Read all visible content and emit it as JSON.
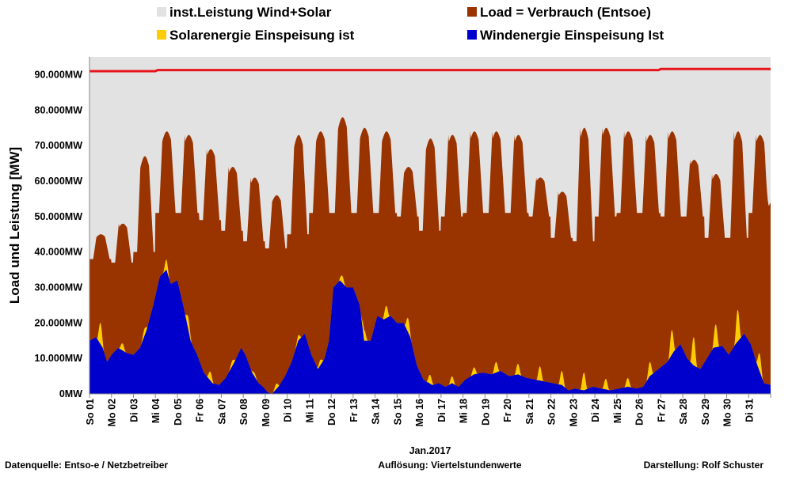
{
  "chart_data": {
    "type": "area",
    "ylabel": "Load und Leistung  [MW]",
    "xlabel": "Jan.2017",
    "ylim": [
      0,
      95000
    ],
    "y_ticks": [
      "0MW",
      "10.000MW",
      "20.000MW",
      "30.000MW",
      "40.000MW",
      "50.000MW",
      "60.000MW",
      "70.000MW",
      "80.000MW",
      "90.000MW"
    ],
    "y_tick_values": [
      0,
      10000,
      20000,
      30000,
      40000,
      50000,
      60000,
      70000,
      80000,
      90000
    ],
    "x_ticks": [
      "So 01",
      "Mo 02",
      "Di 03",
      "Mi 04",
      "Do 05",
      "Fr 06",
      "Sa 07",
      "So 08",
      "Mo 09",
      "Di 10",
      "Mi 11",
      "Do 12",
      "Fr 13",
      "Sa 14",
      "So 15",
      "Mo 16",
      "Di 17",
      "Mi 18",
      "Do 19",
      "Fr 20",
      "Sa 21",
      "So 22",
      "Mo 23",
      "Di 24",
      "Mi 25",
      "Do 26",
      "Fr 27",
      "Sa 28",
      "So 29",
      "Mo 30",
      "Di 31"
    ],
    "x_days": 31,
    "legend": [
      {
        "label": "inst.Leistung Wind+Solar",
        "color": "#e2e2e2"
      },
      {
        "label": "Load =  Verbrauch (Entsoe)",
        "color": "#993300"
      },
      {
        "label": "Solarenergie Einspeisung ist",
        "color": "#ffcc00"
      },
      {
        "label": "Windenergie Einspeisung Ist",
        "color": "#0000cc"
      }
    ],
    "series": [
      {
        "name": "inst.Leistung Wind+Solar",
        "kind": "capacity_line",
        "color": "#e8141c",
        "values": [
          [
            0,
            91000
          ],
          [
            3,
            91000
          ],
          [
            3.1,
            91300
          ],
          [
            25.9,
            91300
          ],
          [
            26,
            91600
          ],
          [
            31,
            91600
          ]
        ]
      },
      {
        "name": "Load =  Verbrauch (Entsoe)",
        "kind": "daily_profile",
        "color": "#993300",
        "daily_peak": [
          45000,
          48000,
          67000,
          74000,
          73000,
          69000,
          64000,
          61000,
          56000,
          73000,
          74000,
          78000,
          75000,
          74000,
          64000,
          72000,
          73000,
          74000,
          74000,
          73000,
          61000,
          57000,
          75000,
          75000,
          74000,
          73000,
          74000,
          66000,
          62000,
          74000,
          73000
        ],
        "daily_min": [
          38000,
          37000,
          40000,
          51000,
          51000,
          49000,
          46000,
          43000,
          41000,
          45000,
          51000,
          51000,
          51000,
          51000,
          50000,
          46000,
          50000,
          51000,
          51000,
          51000,
          50000,
          44000,
          43000,
          50000,
          51000,
          51000,
          50000,
          50000,
          44000,
          44000,
          51000
        ],
        "end_value": 54000
      },
      {
        "name": "Windenergie Einspeisung Ist",
        "kind": "profile",
        "color": "#0000cc",
        "values": [
          [
            0,
            15000
          ],
          [
            0.3,
            16000
          ],
          [
            0.6,
            13000
          ],
          [
            0.8,
            9000
          ],
          [
            1.0,
            11000
          ],
          [
            1.3,
            13000
          ],
          [
            1.7,
            11500
          ],
          [
            2.0,
            11000
          ],
          [
            2.3,
            13000
          ],
          [
            2.6,
            18000
          ],
          [
            2.9,
            25000
          ],
          [
            3.2,
            33000
          ],
          [
            3.5,
            35000
          ],
          [
            3.7,
            31000
          ],
          [
            4.0,
            32000
          ],
          [
            4.3,
            24000
          ],
          [
            4.6,
            15000
          ],
          [
            4.9,
            11000
          ],
          [
            5.2,
            6000
          ],
          [
            5.6,
            3000
          ],
          [
            5.9,
            2500
          ],
          [
            6.2,
            4500
          ],
          [
            6.6,
            9000
          ],
          [
            6.9,
            13000
          ],
          [
            7.1,
            11000
          ],
          [
            7.4,
            6000
          ],
          [
            7.7,
            3000
          ],
          [
            7.9,
            2000
          ],
          [
            8.1,
            500
          ],
          [
            8.3,
            0
          ],
          [
            8.6,
            2000
          ],
          [
            8.9,
            5000
          ],
          [
            9.2,
            9000
          ],
          [
            9.5,
            15000
          ],
          [
            9.8,
            17000
          ],
          [
            10.1,
            11000
          ],
          [
            10.4,
            7000
          ],
          [
            10.7,
            10000
          ],
          [
            10.9,
            15000
          ],
          [
            11.1,
            30000
          ],
          [
            11.4,
            32000
          ],
          [
            11.7,
            30000
          ],
          [
            12.0,
            30000
          ],
          [
            12.3,
            25000
          ],
          [
            12.5,
            15000
          ],
          [
            12.8,
            15000
          ],
          [
            13.1,
            22000
          ],
          [
            13.4,
            21000
          ],
          [
            13.7,
            22000
          ],
          [
            14.0,
            20000
          ],
          [
            14.3,
            20000
          ],
          [
            14.6,
            16000
          ],
          [
            14.9,
            8000
          ],
          [
            15.2,
            4000
          ],
          [
            15.6,
            2500
          ],
          [
            15.9,
            3000
          ],
          [
            16.2,
            2000
          ],
          [
            16.5,
            3000
          ],
          [
            16.8,
            2000
          ],
          [
            17.1,
            4000
          ],
          [
            17.5,
            5500
          ],
          [
            17.9,
            6000
          ],
          [
            18.3,
            5500
          ],
          [
            18.7,
            6500
          ],
          [
            19.1,
            5000
          ],
          [
            19.5,
            5500
          ],
          [
            19.9,
            4500
          ],
          [
            20.3,
            4000
          ],
          [
            20.7,
            3500
          ],
          [
            21.1,
            3000
          ],
          [
            21.5,
            2500
          ],
          [
            21.8,
            1000
          ],
          [
            22.1,
            1500
          ],
          [
            22.5,
            1000
          ],
          [
            22.9,
            2000
          ],
          [
            23.3,
            1500
          ],
          [
            23.7,
            1000
          ],
          [
            24.1,
            1500
          ],
          [
            24.5,
            2000
          ],
          [
            24.9,
            1500
          ],
          [
            25.2,
            2000
          ],
          [
            25.5,
            5000
          ],
          [
            25.9,
            7000
          ],
          [
            26.3,
            9000
          ],
          [
            26.6,
            12000
          ],
          [
            26.9,
            14000
          ],
          [
            27.2,
            10000
          ],
          [
            27.5,
            8000
          ],
          [
            27.8,
            7000
          ],
          [
            28.1,
            10000
          ],
          [
            28.4,
            13000
          ],
          [
            28.8,
            13500
          ],
          [
            29.1,
            11000
          ],
          [
            29.4,
            14000
          ],
          [
            29.8,
            17000
          ],
          [
            30.1,
            14000
          ],
          [
            30.4,
            8000
          ],
          [
            30.7,
            3000
          ],
          [
            31,
            2500
          ]
        ]
      },
      {
        "name": "Solarenergie Einspeisung ist",
        "kind": "daily_bump",
        "color": "#ffcc00",
        "daily_peak": [
          6000,
          2000,
          2000,
          3000,
          3500,
          2500,
          1500,
          1000,
          1500,
          1500,
          1500,
          2000,
          3000,
          3500,
          4000,
          2500,
          2000,
          2000,
          3000,
          3000,
          4000,
          4000,
          5000,
          3000,
          2500,
          4000,
          7000,
          8000,
          6500,
          9000,
          5000
        ]
      }
    ]
  },
  "footer": {
    "source": "Datenquelle:  Entso-e  / Netzbetreiber",
    "resolution": "Auflösung: Viertelstundenwerte",
    "author": "Darstellung: Rolf Schuster"
  }
}
